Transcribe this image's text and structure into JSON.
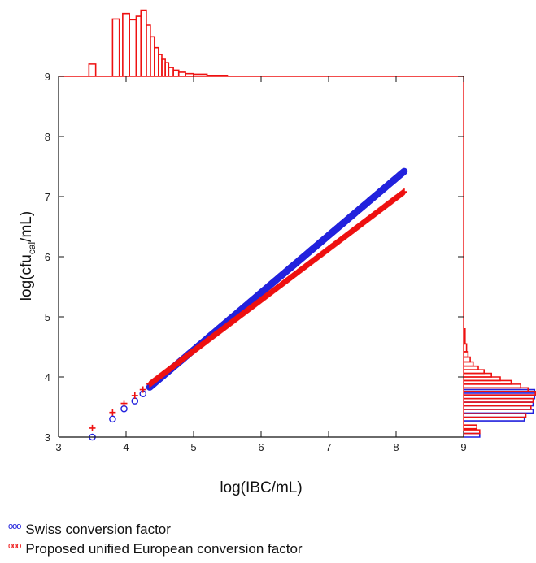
{
  "chart_data": {
    "type": "scatter",
    "title": "",
    "xlabel": "log(IBC/mL)",
    "ylabel": {
      "main": "log(cfu",
      "sub": "cal",
      "tail": "/mL)"
    },
    "xlim": [
      3,
      9
    ],
    "ylim": [
      3,
      9
    ],
    "xticks": [
      "3",
      "4",
      "5",
      "6",
      "7",
      "8",
      "9"
    ],
    "yticks": [
      "3",
      "4",
      "5",
      "6",
      "7",
      "8",
      "9"
    ],
    "grid": false,
    "legend_position": "bottom-left",
    "series": [
      {
        "name": "Swiss conversion factor",
        "color": "#2222dd",
        "marker": "circle",
        "isolated_points": [
          [
            3.5,
            3.0
          ],
          [
            3.8,
            3.3
          ],
          [
            3.97,
            3.47
          ],
          [
            4.13,
            3.6
          ],
          [
            4.25,
            3.72
          ]
        ],
        "dense_line": {
          "x_from": 4.35,
          "x_to": 8.12,
          "y_from": 3.83,
          "y_to": 7.42
        }
      },
      {
        "name": "Proposed unified European conversion factor",
        "color": "#ee1111",
        "marker": "plus",
        "isolated_points": [
          [
            3.5,
            3.15
          ],
          [
            3.8,
            3.41
          ],
          [
            3.97,
            3.56
          ],
          [
            4.13,
            3.69
          ],
          [
            4.25,
            3.79
          ]
        ],
        "dense_line": {
          "x_from": 4.35,
          "x_to": 8.12,
          "y_from": 3.88,
          "y_to": 7.08
        }
      }
    ],
    "x_marginal_histogram": {
      "color": "#ee1111",
      "bins": [
        {
          "x0": 3.45,
          "x1": 3.55,
          "h": 0.18
        },
        {
          "x0": 3.8,
          "x1": 3.9,
          "h": 0.84
        },
        {
          "x0": 3.95,
          "x1": 4.05,
          "h": 0.92
        },
        {
          "x0": 4.05,
          "x1": 4.15,
          "h": 0.83
        },
        {
          "x0": 4.15,
          "x1": 4.22,
          "h": 0.88
        },
        {
          "x0": 4.22,
          "x1": 4.3,
          "h": 0.97
        },
        {
          "x0": 4.3,
          "x1": 4.36,
          "h": 0.75
        },
        {
          "x0": 4.36,
          "x1": 4.42,
          "h": 0.58
        },
        {
          "x0": 4.42,
          "x1": 4.48,
          "h": 0.42
        },
        {
          "x0": 4.48,
          "x1": 4.53,
          "h": 0.32
        },
        {
          "x0": 4.53,
          "x1": 4.58,
          "h": 0.25
        },
        {
          "x0": 4.58,
          "x1": 4.63,
          "h": 0.2
        },
        {
          "x0": 4.63,
          "x1": 4.7,
          "h": 0.13
        },
        {
          "x0": 4.7,
          "x1": 4.78,
          "h": 0.09
        },
        {
          "x0": 4.78,
          "x1": 4.88,
          "h": 0.06
        },
        {
          "x0": 4.88,
          "x1": 5.0,
          "h": 0.04
        },
        {
          "x0": 5.0,
          "x1": 5.2,
          "h": 0.03
        },
        {
          "x0": 5.2,
          "x1": 5.5,
          "h": 0.015
        }
      ]
    },
    "y_marginal_histograms": [
      {
        "color": "#2222dd",
        "bins": [
          {
            "y0": 3.0,
            "y1": 3.06,
            "w": 0.22
          },
          {
            "y0": 3.27,
            "y1": 3.33,
            "w": 0.83
          },
          {
            "y0": 3.4,
            "y1": 3.46,
            "w": 0.95
          },
          {
            "y0": 3.52,
            "y1": 3.58,
            "w": 0.95
          },
          {
            "y0": 3.64,
            "y1": 3.7,
            "w": 0.97
          },
          {
            "y0": 3.73,
            "y1": 3.79,
            "w": 0.97
          }
        ]
      },
      {
        "color": "#ee1111",
        "bins": [
          {
            "y0": 3.06,
            "y1": 3.12,
            "w": 0.22
          },
          {
            "y0": 3.14,
            "y1": 3.2,
            "w": 0.18
          },
          {
            "y0": 3.33,
            "y1": 3.39,
            "w": 0.85
          },
          {
            "y0": 3.46,
            "y1": 3.52,
            "w": 0.92
          },
          {
            "y0": 3.58,
            "y1": 3.64,
            "w": 0.95
          },
          {
            "y0": 3.7,
            "y1": 3.76,
            "w": 0.98
          },
          {
            "y0": 3.76,
            "y1": 3.82,
            "w": 0.88
          },
          {
            "y0": 3.82,
            "y1": 3.88,
            "w": 0.78
          },
          {
            "y0": 3.88,
            "y1": 3.94,
            "w": 0.65
          },
          {
            "y0": 3.94,
            "y1": 4.0,
            "w": 0.5
          },
          {
            "y0": 4.0,
            "y1": 4.06,
            "w": 0.38
          },
          {
            "y0": 4.06,
            "y1": 4.12,
            "w": 0.28
          },
          {
            "y0": 4.12,
            "y1": 4.18,
            "w": 0.2
          },
          {
            "y0": 4.18,
            "y1": 4.25,
            "w": 0.13
          },
          {
            "y0": 4.25,
            "y1": 4.33,
            "w": 0.09
          },
          {
            "y0": 4.33,
            "y1": 4.42,
            "w": 0.06
          },
          {
            "y0": 4.42,
            "y1": 4.55,
            "w": 0.04
          },
          {
            "y0": 4.55,
            "y1": 4.8,
            "w": 0.02
          }
        ]
      }
    ]
  },
  "legend": {
    "marker_text": "ooo",
    "items": [
      {
        "label": "Swiss conversion factor",
        "color": "#2222dd"
      },
      {
        "label": "Proposed unified European conversion factor",
        "color": "#ee1111"
      }
    ]
  }
}
